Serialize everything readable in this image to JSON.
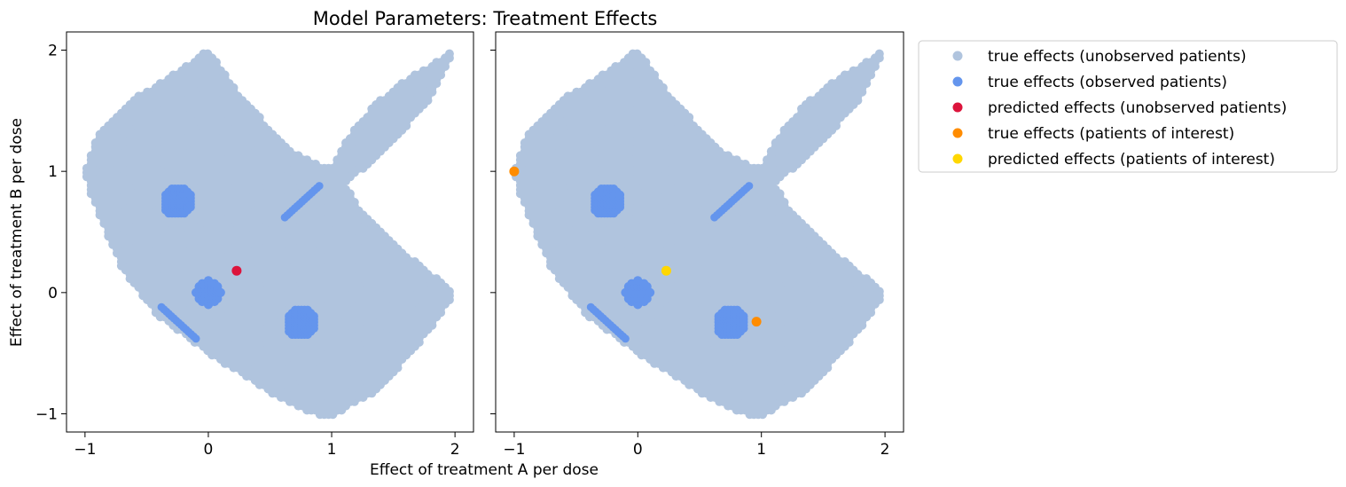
{
  "chart_data": {
    "type": "scatter",
    "title": "Model Parameters: Treatment Effects",
    "xlabel": "Effect of treatment A per dose",
    "ylabel": "Effect of treatment B per dose",
    "xlim": [
      -1.15,
      2.15
    ],
    "ylim": [
      -1.15,
      2.15
    ],
    "xticks": [
      -1,
      0,
      1,
      2
    ],
    "yticks": [
      -1,
      0,
      1,
      2
    ],
    "xtick_labels": [
      "−1",
      "0",
      "1",
      "2"
    ],
    "ytick_labels": [
      "−1",
      "0",
      "1",
      "2"
    ],
    "sharey": true,
    "legend_position": "outside-upper-right",
    "grid": false,
    "series": [
      {
        "name": "true effects (unobserved patients)",
        "color": "#b0c4de"
      },
      {
        "name": "true effects (observed patients)",
        "color": "#6495ed"
      },
      {
        "name": "predicted effects (unobserved patients)",
        "color": "#dc143c"
      },
      {
        "name": "true effects (patients of interest)",
        "color": "#ff8c00"
      },
      {
        "name": "predicted effects (patients of interest)",
        "color": "#ffd700"
      }
    ],
    "panels": [
      {
        "observed_clusters": [
          {
            "shape": "disk",
            "center": [
              -0.25,
              0.75
            ],
            "radius": 0.12
          },
          {
            "shape": "disk",
            "center": [
              0.0,
              0.0
            ],
            "radius": 0.1
          },
          {
            "shape": "disk",
            "center": [
              0.75,
              -0.25
            ],
            "radius": 0.12
          },
          {
            "shape": "line",
            "from": [
              0.62,
              0.62
            ],
            "to": [
              0.9,
              0.88
            ]
          },
          {
            "shape": "line",
            "from": [
              -0.38,
              -0.12
            ],
            "to": [
              -0.1,
              -0.38
            ]
          }
        ],
        "points": [
          {
            "series": 2,
            "x": 0.23,
            "y": 0.18
          }
        ]
      },
      {
        "observed_clusters": [
          {
            "shape": "disk",
            "center": [
              -0.25,
              0.75
            ],
            "radius": 0.12
          },
          {
            "shape": "disk",
            "center": [
              0.0,
              0.0
            ],
            "radius": 0.1
          },
          {
            "shape": "disk",
            "center": [
              0.75,
              -0.25
            ],
            "radius": 0.12
          },
          {
            "shape": "line",
            "from": [
              0.62,
              0.62
            ],
            "to": [
              0.9,
              0.88
            ]
          },
          {
            "shape": "line",
            "from": [
              -0.38,
              -0.12
            ],
            "to": [
              -0.1,
              -0.38
            ]
          }
        ],
        "points": [
          {
            "series": 3,
            "x": -1.0,
            "y": 1.0
          },
          {
            "series": 3,
            "x": 0.96,
            "y": -0.24
          },
          {
            "series": 4,
            "x": 0.23,
            "y": 0.18
          }
        ]
      }
    ],
    "unobserved_region": [
      [
        -1.0,
        1.0
      ],
      [
        -0.9,
        1.3
      ],
      [
        -0.6,
        1.6
      ],
      [
        -0.2,
        1.85
      ],
      [
        0.0,
        2.0
      ],
      [
        0.2,
        1.7
      ],
      [
        0.5,
        1.35
      ],
      [
        0.7,
        1.15
      ],
      [
        0.9,
        1.06
      ],
      [
        1.0,
        1.04
      ],
      [
        1.15,
        1.3
      ],
      [
        1.35,
        1.55
      ],
      [
        1.6,
        1.75
      ],
      [
        1.85,
        1.9
      ],
      [
        2.0,
        2.0
      ],
      [
        1.8,
        1.6
      ],
      [
        1.5,
        1.25
      ],
      [
        1.25,
        1.02
      ],
      [
        1.1,
        0.9
      ],
      [
        1.25,
        0.65
      ],
      [
        1.5,
        0.4
      ],
      [
        1.75,
        0.2
      ],
      [
        2.0,
        0.0
      ],
      [
        1.8,
        -0.3
      ],
      [
        1.6,
        -0.55
      ],
      [
        1.35,
        -0.82
      ],
      [
        1.0,
        -1.02
      ],
      [
        0.85,
        -1.0
      ],
      [
        0.5,
        -0.82
      ],
      [
        0.0,
        -0.5
      ],
      [
        -0.4,
        -0.2
      ],
      [
        -0.7,
        0.2
      ],
      [
        -0.95,
        0.8
      ]
    ]
  }
}
